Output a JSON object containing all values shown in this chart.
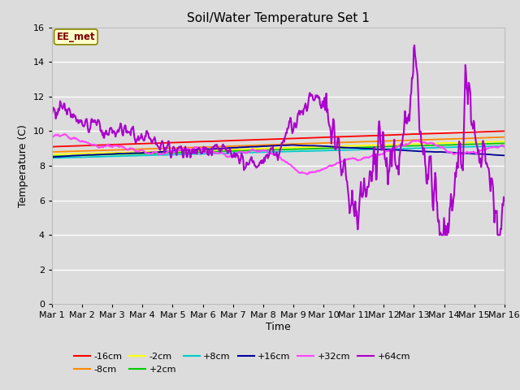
{
  "title": "Soil/Water Temperature Set 1",
  "xlabel": "Time",
  "ylabel": "Temperature (C)",
  "ylim": [
    0,
    16
  ],
  "yticks": [
    0,
    2,
    4,
    6,
    8,
    10,
    12,
    14,
    16
  ],
  "bg_color": "#dcdcdc",
  "annotation_text": "EE_met",
  "annotation_bg": "#ffffcc",
  "annotation_border": "#888800",
  "annotation_text_color": "#800000",
  "colors": {
    "-16cm": "#ff0000",
    "-8cm": "#ff8800",
    "-2cm": "#ffff00",
    "+2cm": "#00cc00",
    "+8cm": "#00cccc",
    "+16cm": "#000099",
    "+32cm": "#ff44ff",
    "+64cm": "#aa00cc"
  },
  "x_tick_labels": [
    "Mar 1",
    "Mar 2",
    "Mar 3",
    "Mar 4",
    "Mar 5",
    "Mar 6",
    "Mar 7",
    "Mar 8",
    "Mar 9",
    "Mar 10",
    "Mar 11",
    "Mar 12",
    "Mar 13",
    "Mar 14",
    "Mar 15",
    "Mar 16"
  ],
  "n_days": 15,
  "pts_per_day": 48
}
